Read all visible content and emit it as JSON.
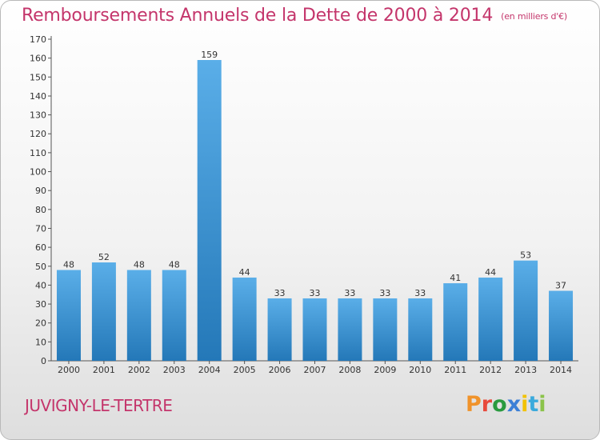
{
  "header": {
    "title": "Remboursements Annuels de la Dette de 2000 à 2014",
    "unit": "(en milliers d'€)"
  },
  "footer": {
    "commune": "JUVIGNY-LE-TERTRE",
    "logo_text": "Proxiti"
  },
  "colors": {
    "title": "#c4356b",
    "bar_top": "#5aaee8",
    "bar_bottom": "#2478b8",
    "logo": [
      "#f0932b",
      "#e84a3c",
      "#2a9a3f",
      "#3b7fd6",
      "#f2c200",
      "#3baadc",
      "#8bc34a"
    ]
  },
  "chart_data": {
    "type": "bar",
    "categories": [
      "2000",
      "2001",
      "2002",
      "2003",
      "2004",
      "2005",
      "2006",
      "2007",
      "2008",
      "2009",
      "2010",
      "2011",
      "2012",
      "2013",
      "2014"
    ],
    "values": [
      48,
      52,
      48,
      48,
      159,
      44,
      33,
      33,
      33,
      33,
      33,
      41,
      44,
      53,
      37
    ],
    "ylim": [
      0,
      170
    ],
    "yticks": [
      0,
      10,
      20,
      30,
      40,
      50,
      60,
      70,
      80,
      90,
      100,
      110,
      120,
      130,
      140,
      150,
      160,
      170
    ],
    "grid": false
  }
}
